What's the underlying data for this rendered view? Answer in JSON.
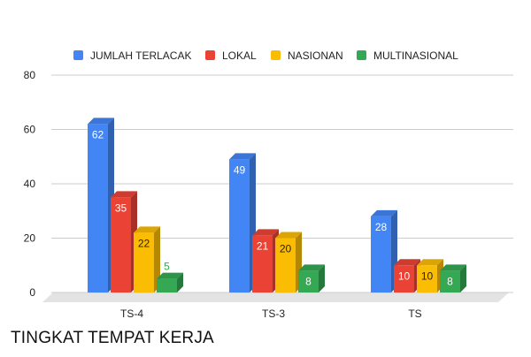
{
  "chart_data": {
    "type": "bar",
    "title": "TINGKAT TEMPAT KERJA",
    "categories": [
      "TS-4",
      "TS-3",
      "TS"
    ],
    "series": [
      {
        "name": "JUMLAH TERLACAK",
        "values": [
          62,
          49,
          28
        ],
        "color": "#4285f4"
      },
      {
        "name": "LOKAL",
        "values": [
          35,
          21,
          10
        ],
        "color": "#ea4335"
      },
      {
        "name": "NASIONAN",
        "values": [
          22,
          20,
          10
        ],
        "color": "#fbbc04"
      },
      {
        "name": "MULTINASIONAL",
        "values": [
          5,
          8,
          8
        ],
        "color": "#34a853"
      }
    ],
    "ylim": [
      0,
      80
    ],
    "yticks": [
      "0",
      "20",
      "40",
      "60",
      "80"
    ],
    "grid": true,
    "legend": "top",
    "style": "3d-column"
  }
}
